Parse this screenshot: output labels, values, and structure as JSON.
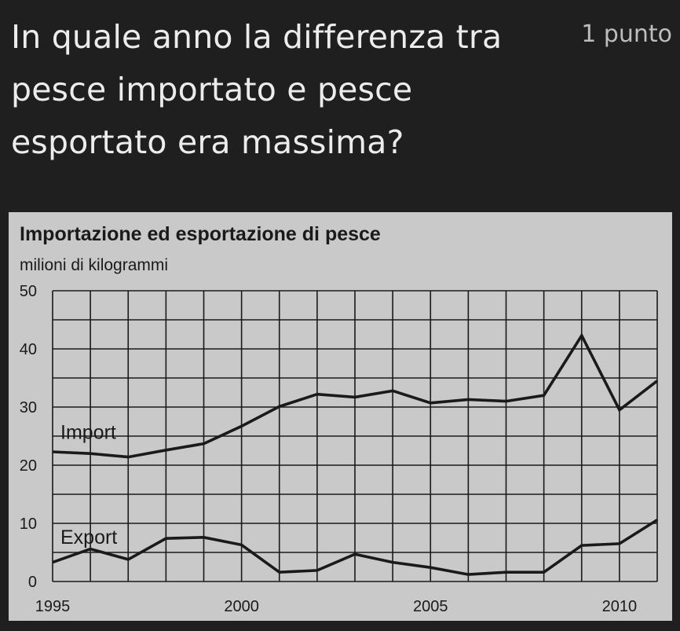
{
  "question": {
    "text": "In quale anno la differenza tra pesce importato e pesce esportato era massima?",
    "points_label": "1 punto"
  },
  "colors": {
    "background": "#1f1f1f",
    "chart_background": "#c9c9c9",
    "line": "#1a1a1a"
  },
  "chart_data": {
    "type": "line",
    "title": "Importazione ed esportazione di pesce",
    "subtitle": "milioni di kilogrammi",
    "xlabel": "",
    "ylabel": "",
    "x": [
      1995,
      1996,
      1997,
      1998,
      1999,
      2000,
      2001,
      2002,
      2003,
      2004,
      2005,
      2006,
      2007,
      2008,
      2009,
      2010,
      2011
    ],
    "x_tick_labels": [
      "1995",
      "2000",
      "2005",
      "2010"
    ],
    "x_tick_values": [
      1995,
      2000,
      2005,
      2010
    ],
    "y_tick_labels": [
      "50",
      "40",
      "30",
      "20",
      "10",
      "0"
    ],
    "y_tick_values": [
      50,
      40,
      30,
      20,
      10,
      0
    ],
    "xlim": [
      1995,
      2011
    ],
    "ylim": [
      0,
      50
    ],
    "grid": true,
    "series": [
      {
        "name": "Import",
        "values": [
          22.3,
          22.0,
          21.4,
          22.6,
          23.7,
          26.7,
          30.1,
          32.2,
          31.7,
          32.8,
          30.7,
          31.3,
          31.0,
          32.0,
          42.3,
          29.5,
          34.5
        ]
      },
      {
        "name": "Export",
        "values": [
          3.3,
          5.6,
          3.8,
          7.4,
          7.6,
          6.3,
          1.6,
          1.9,
          4.7,
          3.3,
          2.4,
          1.2,
          1.6,
          1.6,
          6.2,
          6.5,
          10.6
        ]
      }
    ]
  }
}
